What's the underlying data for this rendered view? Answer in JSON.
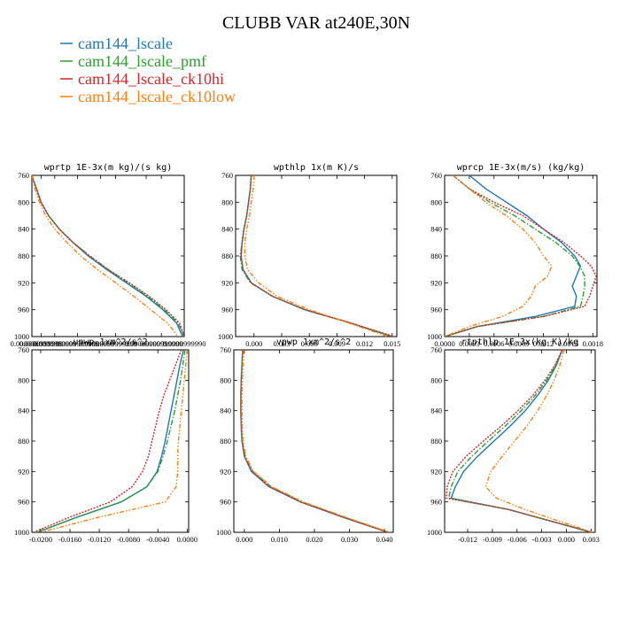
{
  "figure": {
    "title": "CLUBB VAR at240E,30N",
    "legend": [
      {
        "label": "cam144_lscale",
        "color": "#1f77b4"
      },
      {
        "label": "cam144_lscale_pmf",
        "color": "#2ca02c"
      },
      {
        "label": "cam144_lscale_ck10hi",
        "color": "#d62728"
      },
      {
        "label": "cam144_lscale_ck10low",
        "color": "#ff7f0e"
      }
    ]
  },
  "chart_data": [
    {
      "type": "line",
      "title": "wprtp  1E-3x(m kg)/(s kg)",
      "ylim": [
        760,
        1000
      ],
      "yreverse": true,
      "yticks": [
        "760",
        "800",
        "840",
        "880",
        "920",
        "960",
        "1000"
      ],
      "xlim": [
        0,
        1
      ],
      "xticks": [
        {
          "v": 0.0,
          "label": "0.0000000000"
        },
        {
          "v": 0.06,
          "label": "0.0000999999"
        },
        {
          "v": 0.15,
          "label": "0.0000999999"
        },
        {
          "v": 0.3,
          "label": "0.0000999999"
        },
        {
          "v": 0.45,
          "label": "0.0000999999"
        },
        {
          "v": 0.55,
          "label": "0.0000999999"
        },
        {
          "v": 0.75,
          "label": "0.0000999999"
        },
        {
          "v": 0.85,
          "label": "0.0000999999"
        },
        {
          "v": 1.0,
          "label": "0.0000999990"
        }
      ],
      "y": [
        760,
        780,
        800,
        820,
        840,
        860,
        880,
        900,
        920,
        940,
        960,
        980,
        1000
      ],
      "series": [
        {
          "values": [
            0.0,
            0.03,
            0.06,
            0.11,
            0.18,
            0.27,
            0.37,
            0.49,
            0.62,
            0.75,
            0.86,
            0.95,
            0.99
          ]
        },
        {
          "values": [
            0.0,
            0.03,
            0.06,
            0.11,
            0.18,
            0.27,
            0.38,
            0.5,
            0.63,
            0.76,
            0.87,
            0.96,
            1.0
          ]
        },
        {
          "values": [
            0.0,
            0.03,
            0.06,
            0.11,
            0.18,
            0.27,
            0.38,
            0.5,
            0.64,
            0.77,
            0.88,
            0.97,
            1.0
          ]
        },
        {
          "values": [
            0.0,
            0.02,
            0.05,
            0.09,
            0.15,
            0.23,
            0.32,
            0.43,
            0.55,
            0.67,
            0.78,
            0.89,
            0.96
          ]
        }
      ]
    },
    {
      "type": "line",
      "title": "wpthlp  1x(m K)/s",
      "ylim": [
        760,
        1000
      ],
      "yreverse": true,
      "yticks": [
        "760",
        "800",
        "840",
        "880",
        "920",
        "960",
        "1000"
      ],
      "xlim": [
        -0.002,
        0.0155
      ],
      "xticks": [
        {
          "v": 0.0,
          "label": "0.000"
        },
        {
          "v": 0.003,
          "label": "0.003"
        },
        {
          "v": 0.006,
          "label": "0.006"
        },
        {
          "v": 0.009,
          "label": "0.009"
        },
        {
          "v": 0.012,
          "label": "0.012"
        },
        {
          "v": 0.015,
          "label": "0.015"
        }
      ],
      "y": [
        760,
        780,
        800,
        820,
        840,
        860,
        880,
        900,
        920,
        940,
        960,
        980,
        1000
      ],
      "series": [
        {
          "values": [
            -0.0003,
            -0.0004,
            -0.0006,
            -0.0008,
            -0.0011,
            -0.0013,
            -0.0014,
            -0.0012,
            -0.0003,
            0.002,
            0.0055,
            0.0105,
            0.015
          ]
        },
        {
          "values": [
            -0.0003,
            -0.0004,
            -0.0006,
            -0.0008,
            -0.0011,
            -0.0013,
            -0.0015,
            -0.0013,
            -0.0004,
            0.002,
            0.0055,
            0.0105,
            0.015
          ]
        },
        {
          "values": [
            -0.0003,
            -0.0004,
            -0.0006,
            -0.0008,
            -0.0011,
            -0.0013,
            -0.0014,
            -0.0012,
            -0.0003,
            0.002,
            0.0056,
            0.0106,
            0.0152
          ]
        },
        {
          "values": [
            0.0,
            -0.0001,
            -0.0003,
            -0.0005,
            -0.0008,
            -0.001,
            -0.001,
            -0.0007,
            0.0005,
            0.0025,
            0.006,
            0.0103,
            0.0145
          ]
        }
      ]
    },
    {
      "type": "line",
      "title": "wprcp  1E-3x(m/s) (kg/kg)",
      "ylim": [
        760,
        1000
      ],
      "yreverse": true,
      "yticks": [
        "760",
        "800",
        "840",
        "880",
        "920",
        "960",
        "1000"
      ],
      "xlim": [
        0,
        0.00185
      ],
      "xticks": [
        {
          "v": 0.0,
          "label": "0.0000"
        },
        {
          "v": 0.0003,
          "label": "0.0003"
        },
        {
          "v": 0.0006,
          "label": "0.0006"
        },
        {
          "v": 0.0009,
          "label": "0.0009"
        },
        {
          "v": 0.0012,
          "label": "0.0012"
        },
        {
          "v": 0.0015,
          "label": "0.0015"
        },
        {
          "v": 0.0018,
          "label": "0.0018"
        }
      ],
      "y": [
        760,
        780,
        800,
        820,
        840,
        860,
        880,
        895,
        910,
        925,
        940,
        955,
        970,
        985,
        1000
      ],
      "series": [
        {
          "values": [
            0.0003,
            0.0005,
            0.00075,
            0.001,
            0.0012,
            0.00142,
            0.00158,
            0.00165,
            0.0016,
            0.00155,
            0.0016,
            0.00158,
            0.0011,
            0.0004,
            0.0
          ]
        },
        {
          "values": [
            0.0001,
            0.0003,
            0.00055,
            0.00085,
            0.0011,
            0.00135,
            0.00155,
            0.00164,
            0.0017,
            0.0017,
            0.00168,
            0.00165,
            0.0012,
            0.0004,
            0.0
          ]
        },
        {
          "values": [
            0.0001,
            0.0003,
            0.0006,
            0.00095,
            0.0012,
            0.00145,
            0.00165,
            0.00178,
            0.00184,
            0.0018,
            0.00176,
            0.0017,
            0.0012,
            0.0004,
            0.0
          ]
        },
        {
          "values": [
            0.0001,
            0.0003,
            0.0005,
            0.00075,
            0.00095,
            0.0011,
            0.0012,
            0.0013,
            0.00125,
            0.0011,
            0.00105,
            0.00095,
            0.0007,
            0.0003,
            0.0
          ]
        }
      ]
    },
    {
      "type": "line",
      "title": "upwp  1xm^2/s^2",
      "ylim": [
        760,
        1000
      ],
      "yreverse": true,
      "yticks": [
        "760",
        "800",
        "840",
        "880",
        "920",
        "960",
        "1000"
      ],
      "xlim": [
        -0.0212,
        0.0002
      ],
      "xticks": [
        {
          "v": -0.02,
          "label": "-0.0200"
        },
        {
          "v": -0.016,
          "label": "-0.0160"
        },
        {
          "v": -0.012,
          "label": "-0.0120"
        },
        {
          "v": -0.008,
          "label": "-0.0080"
        },
        {
          "v": -0.004,
          "label": "-0.0040"
        },
        {
          "v": 0.0,
          "label": "0.0000"
        }
      ],
      "y": [
        760,
        780,
        800,
        820,
        840,
        860,
        880,
        900,
        920,
        940,
        960,
        980,
        1000
      ],
      "series": [
        {
          "values": [
            -0.0005,
            -0.001,
            -0.0014,
            -0.0018,
            -0.0022,
            -0.0026,
            -0.003,
            -0.0035,
            -0.0041,
            -0.0055,
            -0.009,
            -0.015,
            -0.0205
          ]
        },
        {
          "values": [
            -0.0003,
            -0.0006,
            -0.0009,
            -0.0013,
            -0.0017,
            -0.0022,
            -0.0027,
            -0.0033,
            -0.004,
            -0.0055,
            -0.009,
            -0.015,
            -0.0205
          ]
        },
        {
          "values": [
            -0.0008,
            -0.0016,
            -0.0024,
            -0.0032,
            -0.0038,
            -0.0043,
            -0.0048,
            -0.0053,
            -0.0061,
            -0.0075,
            -0.0105,
            -0.016,
            -0.021
          ]
        },
        {
          "values": [
            0.0,
            -0.0002,
            -0.0004,
            -0.0006,
            -0.0008,
            -0.001,
            -0.0012,
            -0.0013,
            -0.0013,
            -0.0015,
            -0.003,
            -0.012,
            -0.02
          ]
        }
      ]
    },
    {
      "type": "line",
      "title": "vpwp  1xm^2/s^2",
      "ylim": [
        760,
        1000
      ],
      "yreverse": true,
      "yticks": [
        "760",
        "800",
        "840",
        "880",
        "920",
        "960",
        "1000"
      ],
      "xlim": [
        -0.003,
        0.0425
      ],
      "xticks": [
        {
          "v": 0.0,
          "label": "0.000"
        },
        {
          "v": 0.01,
          "label": "0.010"
        },
        {
          "v": 0.02,
          "label": "0.020"
        },
        {
          "v": 0.03,
          "label": "0.030"
        },
        {
          "v": 0.04,
          "label": "0.040"
        }
      ],
      "y": [
        760,
        780,
        800,
        820,
        840,
        860,
        880,
        900,
        920,
        940,
        960,
        980,
        1000
      ],
      "series": [
        {
          "values": [
            -0.0005,
            -0.0007,
            -0.0009,
            -0.001,
            -0.001,
            -0.0009,
            -0.0007,
            0.0,
            0.002,
            0.007,
            0.016,
            0.028,
            0.041
          ]
        },
        {
          "values": [
            -0.0005,
            -0.0007,
            -0.0009,
            -0.001,
            -0.001,
            -0.0009,
            -0.0006,
            0.0002,
            0.0024,
            0.0076,
            0.0165,
            0.0285,
            0.0412
          ]
        },
        {
          "values": [
            -0.0004,
            -0.0006,
            -0.0008,
            -0.0009,
            -0.0009,
            -0.0008,
            -0.0006,
            0.0,
            0.0021,
            0.0072,
            0.016,
            0.0282,
            0.041
          ]
        },
        {
          "values": [
            -0.0002,
            -0.0004,
            -0.0006,
            -0.0007,
            -0.0007,
            -0.0006,
            -0.0004,
            0.0004,
            0.0026,
            0.0078,
            0.0168,
            0.0288,
            0.0415
          ]
        }
      ]
    },
    {
      "type": "line",
      "title": "rtpthlp  1E-3x(kg K)/kg",
      "ylim": [
        760,
        1000
      ],
      "yreverse": true,
      "yticks": [
        "760",
        "800",
        "840",
        "880",
        "920",
        "960",
        "1000"
      ],
      "xlim": [
        -0.0148,
        0.0035
      ],
      "xticks": [
        {
          "v": -0.012,
          "label": "-0.012"
        },
        {
          "v": -0.009,
          "label": "-0.009"
        },
        {
          "v": -0.006,
          "label": "-0.006"
        },
        {
          "v": -0.003,
          "label": "-0.003"
        },
        {
          "v": 0.0,
          "label": "0.000"
        },
        {
          "v": 0.003,
          "label": "0.003"
        }
      ],
      "y": [
        760,
        780,
        800,
        820,
        840,
        860,
        880,
        900,
        920,
        940,
        955,
        970,
        985,
        1000
      ],
      "series": [
        {
          "values": [
            -0.0005,
            -0.0012,
            -0.0022,
            -0.0035,
            -0.005,
            -0.0068,
            -0.0088,
            -0.0108,
            -0.0125,
            -0.0135,
            -0.014,
            -0.007,
            -0.002,
            0.003
          ]
        },
        {
          "values": [
            -0.0005,
            -0.0013,
            -0.0024,
            -0.0038,
            -0.0055,
            -0.0074,
            -0.0095,
            -0.0115,
            -0.0132,
            -0.014,
            -0.0143,
            -0.007,
            -0.002,
            0.0031
          ]
        },
        {
          "values": [
            -0.0005,
            -0.0014,
            -0.0026,
            -0.0041,
            -0.0059,
            -0.0079,
            -0.0101,
            -0.0122,
            -0.0138,
            -0.0145,
            -0.0146,
            -0.007,
            -0.002,
            0.0032
          ]
        },
        {
          "values": [
            -0.0003,
            -0.0008,
            -0.0015,
            -0.0024,
            -0.0035,
            -0.0048,
            -0.0063,
            -0.0078,
            -0.0092,
            -0.0098,
            -0.0085,
            -0.005,
            -0.001,
            0.0032
          ]
        }
      ]
    }
  ]
}
